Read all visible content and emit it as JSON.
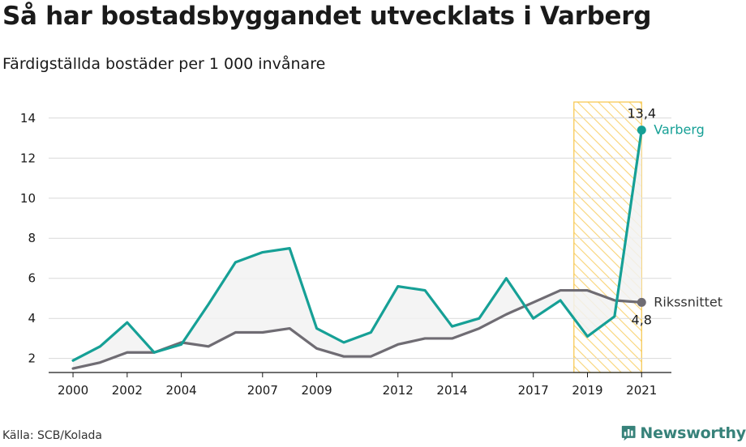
{
  "header": {
    "title": "Så har bostadsbyggandet utvecklats i Varberg",
    "subtitle": "Färdigställda bostäder per 1 000 invånare"
  },
  "footer": {
    "source": "Källa: SCB/Kolada",
    "brand": "Newsworthy",
    "brand_icon": "newsworthy-logo-icon"
  },
  "colors": {
    "varberg": "#16a096",
    "riks": "#6f6c73",
    "highlight": "#f6c548",
    "fill": "#f2f2f2",
    "grid": "#d9d9d9",
    "brand": "#37827a"
  },
  "chart_data": {
    "type": "line",
    "x": [
      2000,
      2001,
      2002,
      2003,
      2004,
      2005,
      2006,
      2007,
      2008,
      2009,
      2010,
      2011,
      2012,
      2013,
      2014,
      2015,
      2016,
      2017,
      2018,
      2019,
      2020,
      2021
    ],
    "x_tick_labels": [
      "2000",
      "2002",
      "2004",
      "2007",
      "2009",
      "2012",
      "2014",
      "2017",
      "2019",
      "2021"
    ],
    "y_ticks": [
      2,
      4,
      6,
      8,
      10,
      12,
      14
    ],
    "ylim": [
      1.3,
      14.8
    ],
    "xlim": [
      1999.1,
      2022.1
    ],
    "grid": true,
    "highlight_range": [
      2018.5,
      2021
    ],
    "series": [
      {
        "name": "Varberg",
        "values": [
          1.9,
          2.6,
          3.8,
          2.3,
          2.7,
          4.7,
          6.8,
          7.3,
          7.5,
          3.5,
          2.8,
          3.3,
          5.6,
          5.4,
          3.6,
          4.0,
          6.0,
          4.0,
          4.9,
          3.1,
          4.1,
          13.4
        ],
        "end_value_label": "13,4",
        "color": "#16a096"
      },
      {
        "name": "Rikssnittet",
        "values": [
          1.5,
          1.8,
          2.3,
          2.3,
          2.8,
          2.6,
          3.3,
          3.3,
          3.5,
          2.5,
          2.1,
          2.1,
          2.7,
          3.0,
          3.0,
          3.5,
          4.2,
          4.8,
          5.4,
          5.4,
          4.9,
          4.8
        ],
        "end_value_label": "4,8",
        "color": "#6f6c73"
      }
    ]
  }
}
